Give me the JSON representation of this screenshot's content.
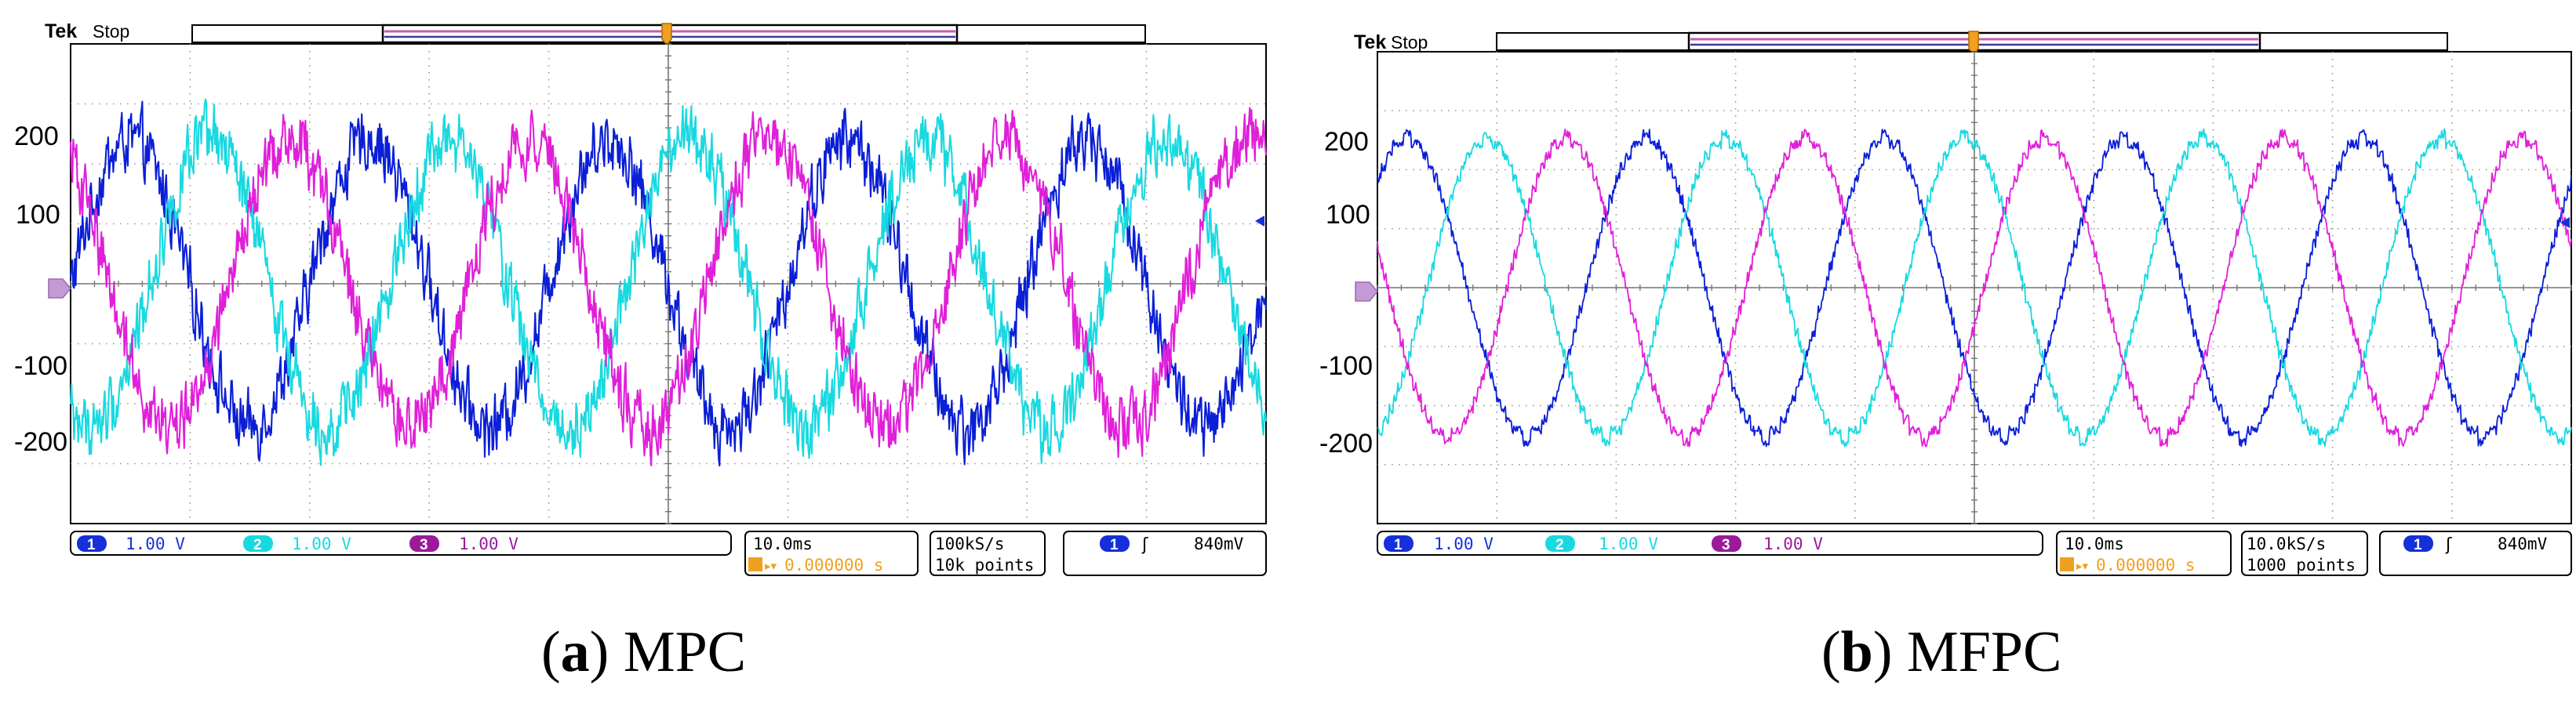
{
  "chart_data": [
    {
      "type": "line",
      "brand": "Tek",
      "status": "Stop",
      "caption_label": "a",
      "caption_text": "MPC",
      "yticks": [
        200,
        100,
        -100,
        -200
      ],
      "ylim": [
        -300,
        300
      ],
      "xlim_ms": [
        -50,
        50
      ],
      "grid": true,
      "cycles_per_screen": 5,
      "amplitude": 180,
      "noise": 50,
      "series": [
        {
          "channel": "1",
          "color": "#0a1fd6",
          "phase_deg": 0,
          "values_amplitude": 180
        },
        {
          "channel": "2",
          "color": "#19d9e0",
          "phase_deg": -120,
          "values_amplitude": 180
        },
        {
          "channel": "3",
          "color": "#e020d8",
          "phase_deg": 120,
          "values_amplitude": 180
        }
      ],
      "status_bar": {
        "ch1_scale": "1.00 V",
        "ch2_scale": "1.00 V",
        "ch3_scale": "1.00 V",
        "timebase": "10.0ms",
        "trigger_pos": "0.000000 s",
        "sample_rate": "100kS/s",
        "record_length": "10k points",
        "trigger_channel": "1",
        "trigger_level": "840mV"
      }
    },
    {
      "type": "line",
      "brand": "Tek",
      "status": "Stop",
      "caption_label": "b",
      "caption_text": "MFPC",
      "yticks": [
        200,
        100,
        -100,
        -200
      ],
      "ylim": [
        -300,
        300
      ],
      "xlim_ms": [
        -50,
        50
      ],
      "grid": true,
      "cycles_per_screen": 5,
      "amplitude": 190,
      "noise": 12,
      "series": [
        {
          "channel": "1",
          "color": "#0a1fd6",
          "phase_deg": 45,
          "values_amplitude": 190
        },
        {
          "channel": "2",
          "color": "#19d9e0",
          "phase_deg": -75,
          "values_amplitude": 190
        },
        {
          "channel": "3",
          "color": "#e020d8",
          "phase_deg": 165,
          "values_amplitude": 190
        }
      ],
      "status_bar": {
        "ch1_scale": "1.00 V",
        "ch2_scale": "1.00 V",
        "ch3_scale": "1.00 V",
        "timebase": "10.0ms",
        "trigger_pos": "0.000000 s",
        "sample_rate": "10.0kS/s",
        "record_length": "1000 points",
        "trigger_channel": "1",
        "trigger_level": "840mV"
      }
    }
  ]
}
